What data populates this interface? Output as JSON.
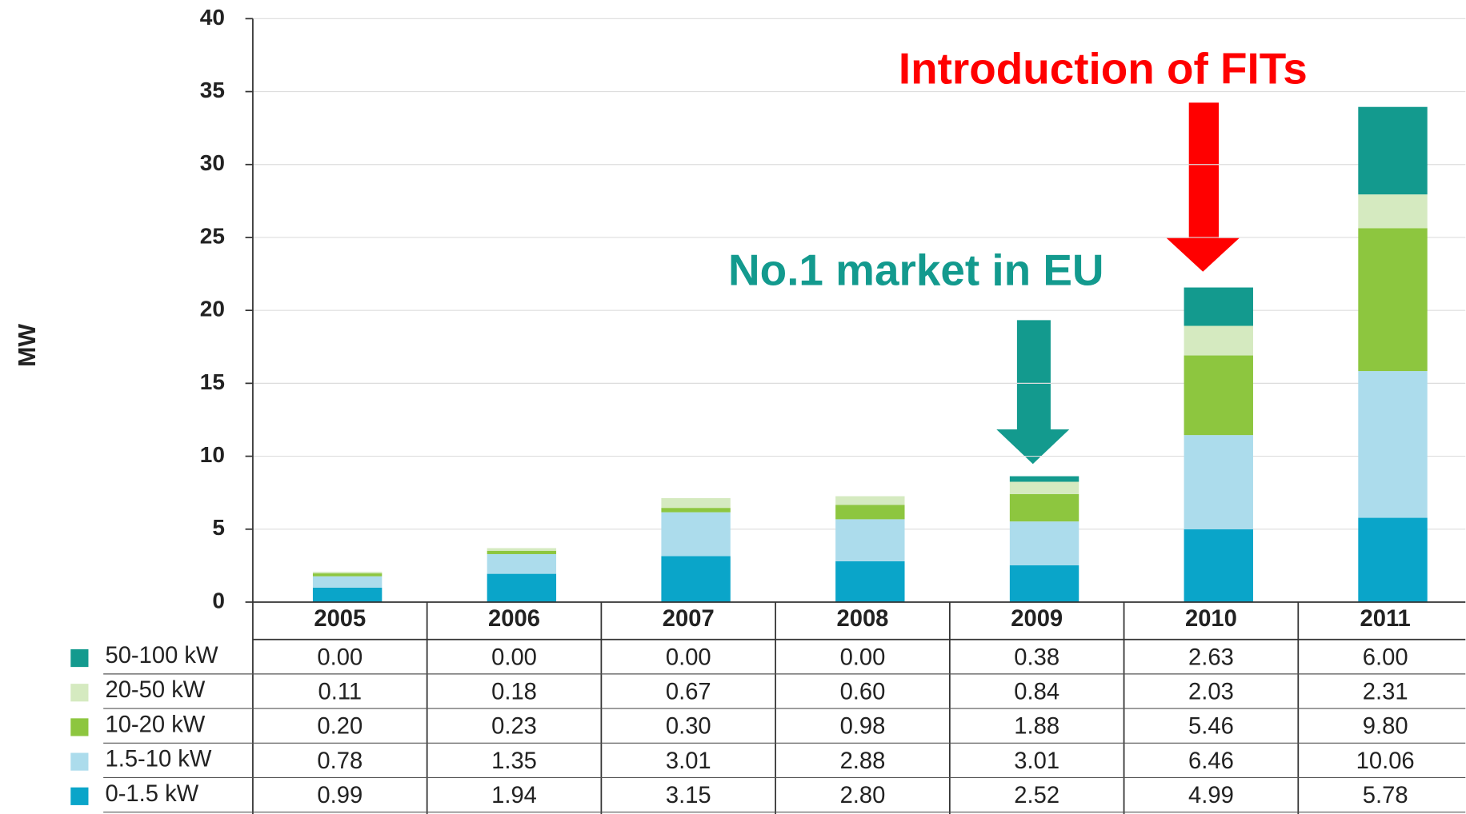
{
  "chart_data": {
    "type": "bar",
    "stacked": true,
    "ylabel": "MW",
    "annotations": [
      "Introduction of FITs",
      "No.1 market in EU"
    ],
    "categories": [
      "2005",
      "2006",
      "2007",
      "2008",
      "2009",
      "2010",
      "2011"
    ],
    "series": [
      {
        "name": "0-1.5 kW",
        "color": "#0aa5c9",
        "values": [
          0.99,
          1.94,
          3.15,
          2.8,
          2.52,
          4.99,
          5.78
        ],
        "value_labels": [
          "0.99",
          "1.94",
          "3.15",
          "2.80",
          "2.52",
          "4.99",
          "5.78"
        ]
      },
      {
        "name": "1.5-10 kW",
        "color": "#acdcec",
        "values": [
          0.78,
          1.35,
          3.01,
          2.88,
          3.01,
          6.46,
          10.06
        ],
        "value_labels": [
          "0.78",
          "1.35",
          "3.01",
          "2.88",
          "3.01",
          "6.46",
          "10.06"
        ]
      },
      {
        "name": "10-20 kW",
        "color": "#8dc63f",
        "values": [
          0.2,
          0.23,
          0.3,
          0.98,
          1.88,
          5.46,
          9.8
        ],
        "value_labels": [
          "0.20",
          "0.23",
          "0.30",
          "0.98",
          "1.88",
          "5.46",
          "9.80"
        ]
      },
      {
        "name": "20-50 kW",
        "color": "#d5eac0",
        "values": [
          0.11,
          0.18,
          0.67,
          0.6,
          0.84,
          2.03,
          2.31
        ],
        "value_labels": [
          "0.11",
          "0.18",
          "0.67",
          "0.60",
          "0.84",
          "2.03",
          "2.31"
        ]
      },
      {
        "name": "50-100 kW",
        "color": "#139a8e",
        "values": [
          0.0,
          0.0,
          0.0,
          0.0,
          0.38,
          2.63,
          6.0
        ],
        "value_labels": [
          "0.00",
          "0.00",
          "0.00",
          "0.00",
          "0.38",
          "2.63",
          "6.00"
        ]
      }
    ],
    "ylim": [
      0,
      40
    ],
    "yticks": [
      0,
      5,
      10,
      15,
      20,
      25,
      30,
      35,
      40
    ],
    "grid": true
  }
}
